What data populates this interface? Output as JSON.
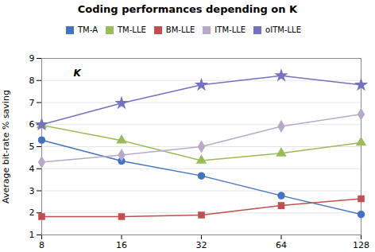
{
  "chart_data": {
    "type": "line",
    "title": "Coding performances depending on K",
    "ylabel": "Average bit-rate % saving",
    "annotations": [
      {
        "text": "K"
      }
    ],
    "x": [
      8,
      16,
      32,
      64,
      128
    ],
    "xlim": [
      8,
      128
    ],
    "xticks": [
      8,
      16,
      32,
      64,
      128
    ],
    "log": "x",
    "ylim": [
      1,
      9
    ],
    "yticks": [
      1,
      2,
      3,
      4,
      5,
      6,
      7,
      8,
      9
    ],
    "grid": true,
    "legend": "top",
    "series": [
      {
        "name": "TM-A",
        "color": "#4472C4",
        "marker": "circle",
        "values": [
          5.3,
          4.35,
          3.68,
          2.78,
          1.93
        ]
      },
      {
        "name": "TM-LLE",
        "color": "#9BBB59",
        "marker": "triangle",
        "values": [
          5.97,
          5.28,
          4.37,
          4.7,
          5.18
        ]
      },
      {
        "name": "BM-LLE",
        "color": "#C0504D",
        "marker": "square",
        "values": [
          1.83,
          1.83,
          1.9,
          2.33,
          2.64
        ]
      },
      {
        "name": "ITM-LLE",
        "color": "#B8A9C9",
        "marker": "diamond",
        "values": [
          4.3,
          4.62,
          5.0,
          5.92,
          6.47
        ]
      },
      {
        "name": "oITM-LLE",
        "color": "#7472C0",
        "marker": "star",
        "values": [
          6.0,
          6.97,
          7.8,
          8.22,
          7.8
        ]
      }
    ]
  }
}
